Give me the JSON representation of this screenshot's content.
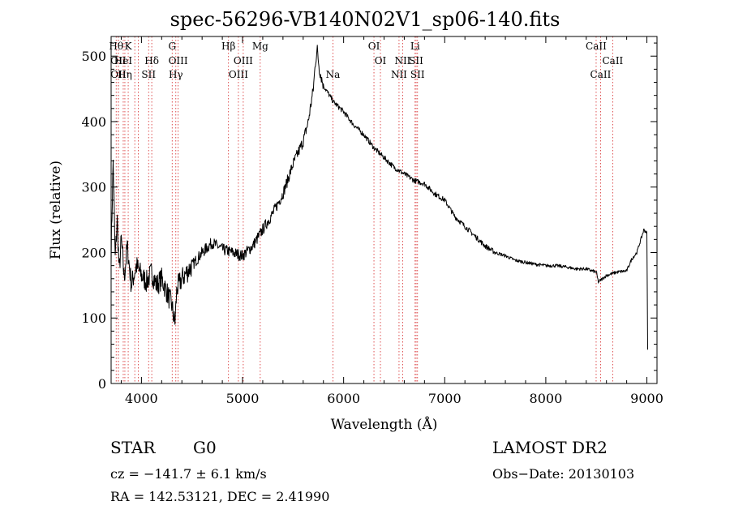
{
  "title": "spec-56296-VB140N02V1_sp06-140.fits",
  "footer": {
    "class": "STAR",
    "subclass": "G0",
    "survey": "LAMOST DR2",
    "cz": "cz = −141.7 ± 6.1 km/s",
    "obs_date": "Obs−Date: 20130103",
    "radec": "RA = 142.53121, DEC =   2.41990"
  },
  "colors": {
    "line_marker": "#d62728",
    "spectrum": "#000000"
  },
  "chart_data": {
    "type": "line",
    "title": "spec-56296-VB140N02V1_sp06-140.fits",
    "xlabel": "Wavelength (Å)",
    "ylabel": "Flux (relative)",
    "xlim": [
      3700,
      9100
    ],
    "ylim": [
      0,
      530
    ],
    "xticks": [
      4000,
      5000,
      6000,
      7000,
      8000,
      9000
    ],
    "yticks": [
      0,
      100,
      200,
      300,
      400,
      500
    ],
    "grid": false,
    "series": [
      {
        "x": [
          3700,
          3720,
          3740,
          3760,
          3780,
          3800,
          3830,
          3860,
          3900,
          3950,
          4000,
          4050,
          4100,
          4150,
          4200,
          4250,
          4300,
          4330,
          4350,
          4400,
          4500,
          4600,
          4700,
          4800,
          4900,
          5000,
          5100,
          5200,
          5300,
          5400,
          5500,
          5600,
          5650,
          5700,
          5720,
          5740,
          5760,
          5800,
          5900,
          6000,
          6100,
          6200,
          6300,
          6400,
          6500,
          6600,
          6700,
          6800,
          6900,
          7000,
          7100,
          7200,
          7300,
          7400,
          7500,
          7600,
          7700,
          7800,
          7900,
          8000,
          8100,
          8200,
          8300,
          8400,
          8500,
          8520,
          8600,
          8700,
          8800,
          8850,
          8900,
          8950,
          8970,
          9000,
          9010
        ],
        "y": [
          200,
          340,
          190,
          250,
          170,
          220,
          160,
          210,
          150,
          180,
          165,
          155,
          170,
          150,
          160,
          140,
          120,
          90,
          145,
          160,
          180,
          200,
          215,
          205,
          200,
          195,
          210,
          235,
          260,
          290,
          335,
          370,
          400,
          450,
          490,
          510,
          480,
          455,
          430,
          415,
          395,
          380,
          360,
          345,
          330,
          320,
          310,
          305,
          290,
          280,
          255,
          240,
          225,
          210,
          200,
          195,
          188,
          185,
          182,
          180,
          180,
          178,
          175,
          175,
          170,
          155,
          165,
          170,
          172,
          190,
          200,
          225,
          235,
          230,
          10
        ]
      }
    ],
    "line_markers": [
      {
        "w": 3750,
        "label": "Hθ",
        "row": 0
      },
      {
        "w": 3771,
        "label": "OII",
        "row": 1
      },
      {
        "w": 3772,
        "label": "OII",
        "row": 2
      },
      {
        "w": 3820,
        "label": "HeI",
        "row": 1
      },
      {
        "w": 3836,
        "label": "Hη",
        "row": 2
      },
      {
        "w": 3869,
        "label": "K",
        "row": 0
      },
      {
        "w": 3934,
        "label": "",
        "row": -1
      },
      {
        "w": 3968,
        "label": "",
        "row": -1
      },
      {
        "w": 4071,
        "label": "SII",
        "row": 2
      },
      {
        "w": 4102,
        "label": "Hδ",
        "row": 1
      },
      {
        "w": 4304,
        "label": "G",
        "row": 0
      },
      {
        "w": 4340,
        "label": "Hγ",
        "row": 2
      },
      {
        "w": 4363,
        "label": "OIII",
        "row": 1
      },
      {
        "w": 4861,
        "label": "Hβ",
        "row": 0
      },
      {
        "w": 4959,
        "label": "OIII",
        "row": 2
      },
      {
        "w": 5007,
        "label": "OIII",
        "row": 1
      },
      {
        "w": 5175,
        "label": "Mg",
        "row": 0
      },
      {
        "w": 5894,
        "label": "Na",
        "row": 2
      },
      {
        "w": 6300,
        "label": "OI",
        "row": 0
      },
      {
        "w": 6364,
        "label": "OI",
        "row": 1
      },
      {
        "w": 6548,
        "label": "NII",
        "row": 2
      },
      {
        "w": 6584,
        "label": "NII",
        "row": 1
      },
      {
        "w": 6707,
        "label": "Li",
        "row": 0
      },
      {
        "w": 6717,
        "label": "SII",
        "row": 1
      },
      {
        "w": 6731,
        "label": "SII",
        "row": 2
      },
      {
        "w": 8498,
        "label": "CaII",
        "row": 0
      },
      {
        "w": 8542,
        "label": "CaII",
        "row": 2
      },
      {
        "w": 8662,
        "label": "CaII",
        "row": 1
      }
    ]
  }
}
